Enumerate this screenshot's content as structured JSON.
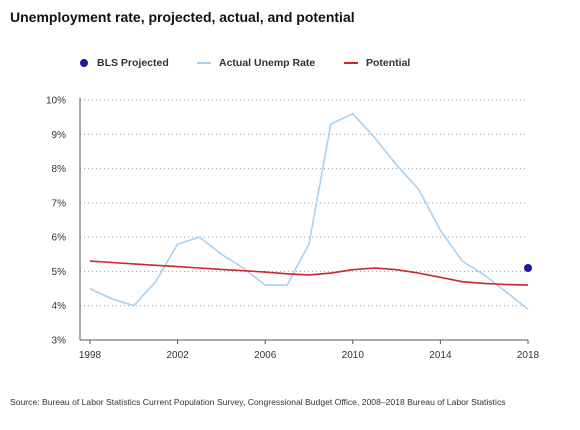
{
  "title": "Unemployment rate, projected, actual, and potential",
  "source": "Source: Bureau of Labor Statistics Current Population Survey, Congressional Budget Office, 2008–2018 Bureau of Labor Statistics",
  "legend": [
    {
      "label": "BLS Projected",
      "marker": "dot",
      "color": "#1a1aa0"
    },
    {
      "label": "Actual Unemp Rate",
      "marker": "line",
      "color": "#a8d0f0"
    },
    {
      "label": "Potential",
      "marker": "line",
      "color": "#c8282e"
    }
  ],
  "chart_data": {
    "type": "line",
    "title": "Unemployment rate, projected, actual, and potential",
    "xlabel": "",
    "ylabel": "",
    "xlim": [
      1998,
      2018
    ],
    "ylim": [
      3,
      10
    ],
    "x_ticks": [
      1998,
      2002,
      2006,
      2010,
      2014,
      2018
    ],
    "y_ticks": [
      3,
      4,
      5,
      6,
      7,
      8,
      9,
      10
    ],
    "y_tick_suffix": "%",
    "grid": "horizontal dotted",
    "legend_position": "top-left",
    "series": [
      {
        "name": "Actual Unemp Rate",
        "style": "line",
        "color": "#a8d0f0",
        "x": [
          1998,
          1999,
          2000,
          2001,
          2002,
          2003,
          2004,
          2005,
          2006,
          2007,
          2008,
          2009,
          2010,
          2011,
          2012,
          2013,
          2014,
          2015,
          2016,
          2017,
          2018
        ],
        "values": [
          4.5,
          4.2,
          4.0,
          4.7,
          5.8,
          6.0,
          5.5,
          5.1,
          4.6,
          4.6,
          5.8,
          9.3,
          9.6,
          8.9,
          8.1,
          7.4,
          6.2,
          5.3,
          4.9,
          4.4,
          3.9
        ]
      },
      {
        "name": "Potential",
        "style": "line",
        "color": "#c8282e",
        "x": [
          1998,
          1999,
          2000,
          2001,
          2002,
          2003,
          2004,
          2005,
          2006,
          2007,
          2008,
          2009,
          2010,
          2011,
          2012,
          2013,
          2014,
          2015,
          2016,
          2017,
          2018
        ],
        "values": [
          5.3,
          5.26,
          5.22,
          5.18,
          5.14,
          5.1,
          5.06,
          5.02,
          4.98,
          4.93,
          4.9,
          4.95,
          5.05,
          5.1,
          5.05,
          4.95,
          4.83,
          4.7,
          4.65,
          4.62,
          4.6
        ]
      },
      {
        "name": "BLS Projected",
        "style": "dot",
        "color": "#1a1aa0",
        "x": [
          2018
        ],
        "values": [
          5.1
        ]
      }
    ]
  }
}
